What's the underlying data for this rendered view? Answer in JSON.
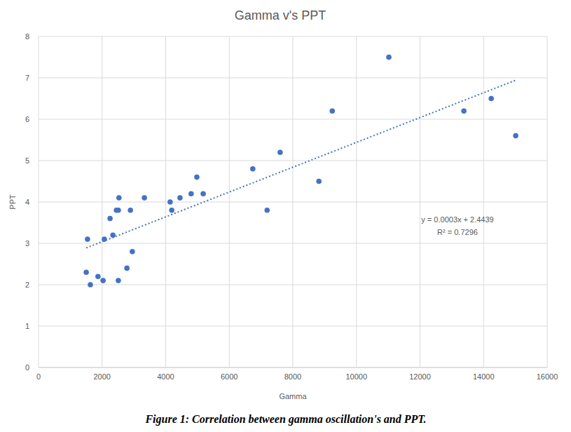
{
  "chart_data": {
    "type": "scatter",
    "title": "Gamma v's PPT",
    "x_label": "Gamma",
    "y_label": "PPT",
    "caption": "Figure 1: Correlation between gamma oscillation's and PPT.",
    "annotations": [
      "y = 0.0003x + 2.4439",
      "R² = 0.7296"
    ],
    "xlim": [
      0,
      16000
    ],
    "xticks": [
      0,
      2000,
      4000,
      6000,
      8000,
      10000,
      12000,
      14000,
      16000
    ],
    "ylim": [
      0,
      8
    ],
    "yticks": [
      0,
      1,
      2,
      3,
      4,
      5,
      6,
      7,
      8
    ],
    "grid": true,
    "series": [
      {
        "type": "scatter",
        "marker": "circle",
        "color": "#4472c4",
        "x": [
          1500,
          1540,
          1630,
          1870,
          2030,
          2070,
          2250,
          2340,
          2450,
          2510,
          2530,
          2510,
          2780,
          2890,
          2950,
          3330,
          4140,
          4190,
          4450,
          4800,
          4980,
          5180,
          6740,
          7190,
          7600,
          8820,
          9240,
          11020,
          13380,
          14240,
          15010
        ],
        "values": [
          2.3,
          3.1,
          2.0,
          2.2,
          2.1,
          3.1,
          3.6,
          3.2,
          3.8,
          3.8,
          4.1,
          2.1,
          2.4,
          3.8,
          2.8,
          4.1,
          4.0,
          3.8,
          4.1,
          4.2,
          4.6,
          4.2,
          4.8,
          3.8,
          5.2,
          4.5,
          6.2,
          7.5,
          6.2,
          6.5,
          5.6
        ]
      },
      {
        "type": "line",
        "line_style": "dotted",
        "color": "#4472c4",
        "x": [
          1500,
          15000
        ],
        "values": [
          2.89,
          6.94
        ]
      }
    ]
  }
}
